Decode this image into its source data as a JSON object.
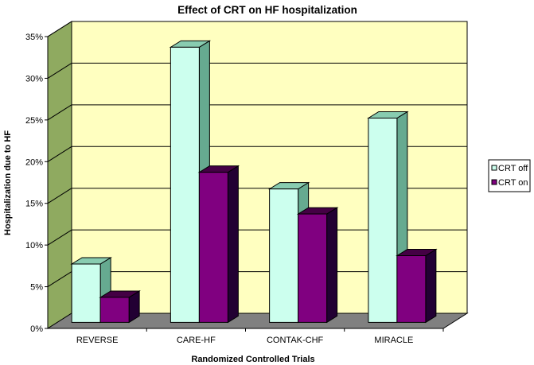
{
  "chart_data": {
    "type": "bar",
    "title": "Effect of CRT on HF hospitalization",
    "xlabel": "Randomized Controlled Trials",
    "ylabel": "Hospitalization due to HF",
    "categories": [
      "REVERSE",
      "CARE-HF",
      "CONTAK-CHF",
      "MIRACLE"
    ],
    "series": [
      {
        "name": "CRT off",
        "values": [
          7,
          33,
          16,
          24.5
        ],
        "color": "#ccffee",
        "side_color": "#66aa90",
        "top_color": "#88ccb0"
      },
      {
        "name": "CRT on",
        "values": [
          3,
          18,
          13,
          8
        ],
        "color": "#800080",
        "side_color": "#220033",
        "top_color": "#440044"
      }
    ],
    "ylim": [
      0,
      35
    ],
    "yticks": [
      0,
      5,
      10,
      15,
      20,
      25,
      30,
      35
    ],
    "ytick_labels": [
      "0%",
      "5%",
      "10%",
      "15%",
      "20%",
      "25%",
      "30%",
      "35%"
    ],
    "grid": true,
    "legend_position": "right",
    "style": "3d-clustered-column",
    "colors": {
      "wall": "#ffffc0",
      "side_wall": "#8faa60",
      "floor": "#808080"
    }
  }
}
